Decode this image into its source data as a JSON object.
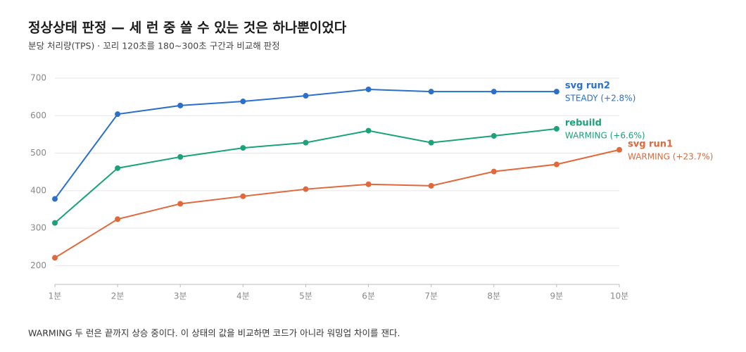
{
  "chart_data": {
    "type": "line",
    "title": "정상상태 판정 — 세 런 중 쓸 수 있는 것은 하나뿐이었다",
    "subtitle": "분당 처리량(TPS) · 꼬리 120초를 180~300초 구간과 비교해 판정",
    "note": "WARMING 두 런은 끝까지 상승 중이다. 이 상태의 값을 비교하면 코드가 아니라 워밍업 차이를 잰다.",
    "categories": [
      "1분",
      "2분",
      "3분",
      "4분",
      "5분",
      "6분",
      "7분",
      "8분",
      "9분",
      "10분"
    ],
    "ylim": [
      150,
      700
    ],
    "yticks": [
      200,
      300,
      400,
      500,
      600,
      700
    ],
    "grid": true,
    "series": [
      {
        "name": "svg run2",
        "status": "STEADY (+2.8%)",
        "color": "#2a6fc9",
        "values": [
          378,
          604,
          627,
          638,
          653,
          670,
          664,
          664,
          664,
          null
        ]
      },
      {
        "name": "rebuild",
        "status": "WARMING (+6.6%)",
        "color": "#1aa37a",
        "values": [
          314,
          460,
          490,
          514,
          528,
          560,
          528,
          546,
          565,
          null
        ]
      },
      {
        "name": "svg run1",
        "status": "WARMING (+23.7%)",
        "color": "#e0683a",
        "values": [
          221,
          324,
          365,
          385,
          404,
          417,
          413,
          451,
          470,
          509
        ]
      }
    ]
  }
}
